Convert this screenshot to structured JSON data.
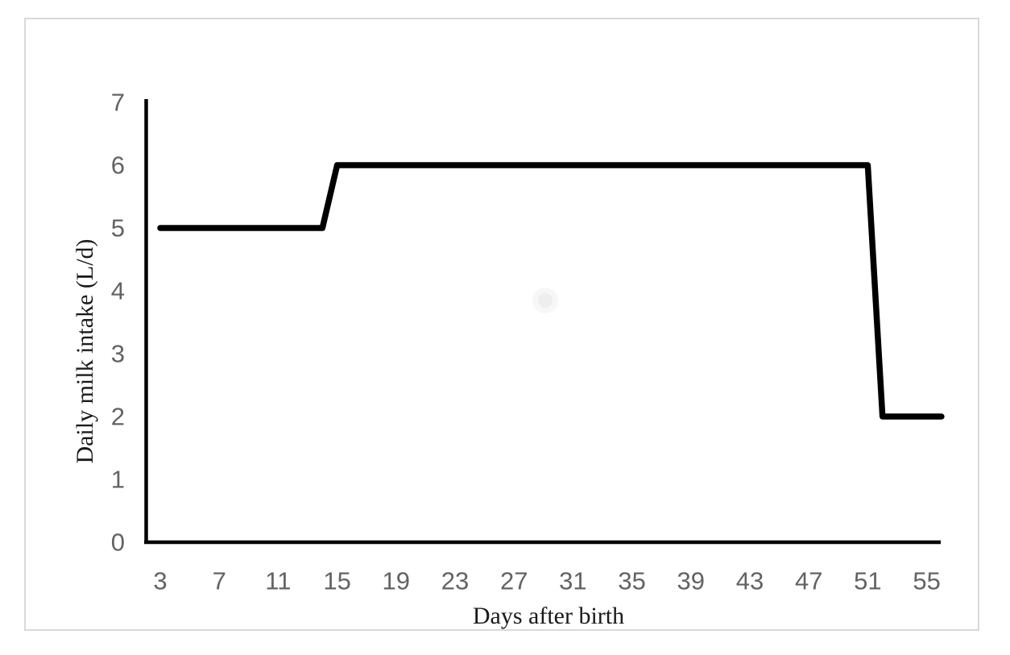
{
  "chart_data": {
    "type": "line",
    "title": "",
    "xlabel": "Days after birth",
    "ylabel": "Daily milk intake (L/d)",
    "x_ticks": [
      3,
      7,
      11,
      15,
      19,
      23,
      27,
      31,
      35,
      39,
      43,
      47,
      51,
      55
    ],
    "y_ticks": [
      0,
      1,
      2,
      3,
      4,
      5,
      6,
      7
    ],
    "xlim": [
      2,
      56
    ],
    "ylim": [
      0,
      7
    ],
    "grid": false,
    "legend": false,
    "series": [
      {
        "name": "Daily milk intake",
        "points": [
          {
            "day": 3,
            "value": 5
          },
          {
            "day": 14,
            "value": 5
          },
          {
            "day": 15,
            "value": 6
          },
          {
            "day": 51,
            "value": 6
          },
          {
            "day": 52,
            "value": 2
          },
          {
            "day": 56,
            "value": 2
          }
        ]
      }
    ],
    "description": "Milk fed at 5 L/d from day 3 to day 14, 6 L/d from day 15 to day 51, then reduced to 2 L/d from day 52 to day 56."
  },
  "colors": {
    "line": "#000000",
    "axis": "#000000",
    "tick_label": "#636363",
    "axis_title": "#1a1a1a",
    "frame_border": "#d9d9d9",
    "background": "#ffffff"
  }
}
